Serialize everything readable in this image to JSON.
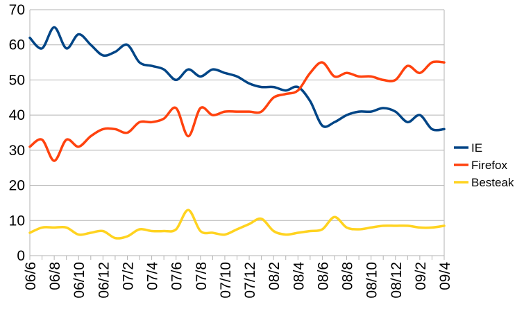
{
  "chart_data": {
    "type": "line",
    "title": "",
    "xlabel": "",
    "ylabel": "",
    "ylim": [
      0,
      70
    ],
    "yticks": [
      0,
      10,
      20,
      30,
      40,
      50,
      60,
      70
    ],
    "grid": true,
    "legend_position": "right",
    "categories": [
      "06/6",
      "06/7",
      "06/8",
      "06/9",
      "06/10",
      "06/11",
      "06/12",
      "07/1",
      "07/2",
      "07/3",
      "07/4",
      "07/5",
      "07/6",
      "07/7",
      "07/8",
      "07/9",
      "07/10",
      "07/11",
      "07/12",
      "08/1",
      "08/2",
      "08/3",
      "08/4",
      "08/5",
      "08/6",
      "08/7",
      "08/8",
      "08/9",
      "08/10",
      "08/11",
      "08/12",
      "09/1",
      "09/2",
      "09/3",
      "09/4"
    ],
    "x_tick_labels": [
      "06/6",
      "06/8",
      "06/10",
      "06/12",
      "07/2",
      "07/4",
      "07/6",
      "07/8",
      "07/10",
      "07/12",
      "08/2",
      "08/4",
      "08/6",
      "08/8",
      "08/10",
      "08/12",
      "09/2",
      "09/4"
    ],
    "series": [
      {
        "name": "IE",
        "color": "#004586",
        "values": [
          62,
          59,
          65,
          59,
          63,
          60,
          57,
          58,
          60,
          55,
          54,
          53,
          50,
          53,
          51,
          53,
          52,
          51,
          49,
          48,
          48,
          47,
          48,
          44,
          37,
          38,
          40,
          41,
          41,
          42,
          41,
          38,
          40,
          36,
          36
        ]
      },
      {
        "name": "Firefox",
        "color": "#ff420e",
        "values": [
          31,
          33,
          27,
          33,
          31,
          34,
          36,
          36,
          35,
          38,
          38,
          39,
          42,
          34,
          42,
          40,
          41,
          41,
          41,
          41,
          45,
          46,
          47,
          52,
          55,
          51,
          52,
          51,
          51,
          50,
          50,
          54,
          52,
          55,
          55
        ]
      },
      {
        "name": "Besteak",
        "color": "#ffd320",
        "values": [
          6.5,
          8,
          8,
          8,
          6,
          6.5,
          7,
          5,
          5.5,
          7.5,
          7,
          7,
          7.5,
          13,
          7,
          6.5,
          6,
          7.5,
          9,
          10.5,
          7,
          6,
          6.5,
          7,
          7.5,
          11,
          8,
          7.5,
          8,
          8.5,
          8.5,
          8.5,
          8,
          8,
          8.5
        ]
      }
    ]
  }
}
